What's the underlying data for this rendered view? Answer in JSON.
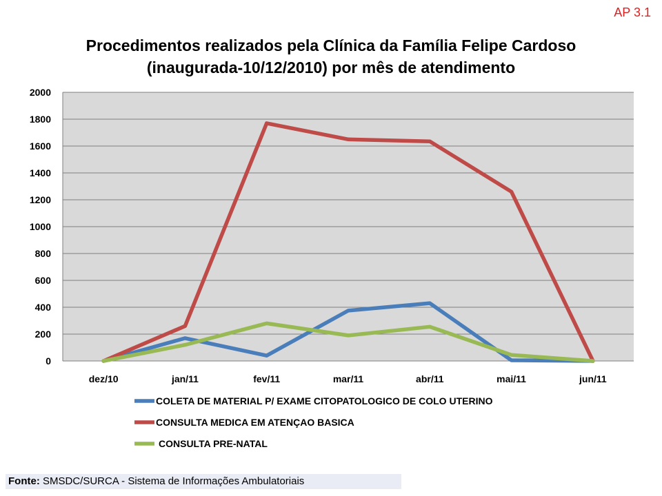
{
  "corner_label": "AP 3.1",
  "title_line1": "Procedimentos realizados pela Clínica da Família Felipe Cardoso",
  "title_line2": "(inaugurada-10/12/2010) por mês de atendimento",
  "source_label": "Fonte:",
  "source_text": "SMSDC/SURCA - Sistema de Informações Ambulatoriais",
  "chart_data": {
    "type": "line",
    "title": "Procedimentos realizados pela Clínica da Família Felipe Cardoso (inaugurada-10/12/2010) por mês de atendimento",
    "categories": [
      "dez/10",
      "jan/11",
      "fev/11",
      "mar/11",
      "abr/11",
      "mai/11",
      "jun/11"
    ],
    "ylim": [
      0,
      2000
    ],
    "yticks": [
      0,
      200,
      400,
      600,
      800,
      1000,
      1200,
      1400,
      1600,
      1800,
      2000
    ],
    "grid": true,
    "legend_position": "bottom",
    "series": [
      {
        "name": "COLETA DE MATERIAL P/ EXAME CITOPATOLOGICO DE COLO UTERINO",
        "color": "#4a7ebb",
        "values": [
          0,
          170,
          40,
          375,
          430,
          5,
          0
        ]
      },
      {
        "name": "CONSULTA MEDICA EM ATENÇAO BASICA",
        "color": "#be4b48",
        "values": [
          0,
          260,
          1770,
          1650,
          1635,
          1260,
          0
        ]
      },
      {
        "name": "CONSULTA PRE-NATAL",
        "color": "#98b954",
        "values": [
          0,
          120,
          280,
          190,
          255,
          45,
          0
        ]
      }
    ]
  }
}
